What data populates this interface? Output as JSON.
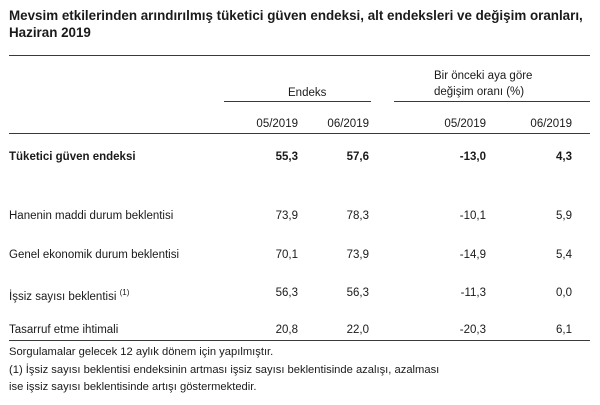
{
  "title": "Mevsim etkilerinden arındırılmış tüketici güven endeksi, alt endeksleri ve değişim oranları, Haziran 2019",
  "headers": {
    "group_index": "Endeks",
    "group_change_line1": "Bir önceki aya göre",
    "group_change_line2": "değişim oranı (%)",
    "periods": [
      "05/2019",
      "06/2019",
      "05/2019",
      "06/2019"
    ]
  },
  "rows": [
    {
      "label": "Tüketici güven endeksi",
      "sup": "",
      "values": [
        "55,3",
        "57,6",
        "-13,0",
        "4,3"
      ],
      "bold": true
    },
    {
      "label": "Hanenin maddi durum beklentisi",
      "sup": "",
      "values": [
        "73,9",
        "78,3",
        "-10,1",
        "5,9"
      ],
      "bold": false
    },
    {
      "label": "Genel ekonomik durum beklentisi",
      "sup": "",
      "values": [
        "70,1",
        "73,9",
        "-14,9",
        "5,4"
      ],
      "bold": false
    },
    {
      "label": "İşsiz sayısı beklentisi",
      "sup": "(1)",
      "values": [
        "56,3",
        "56,3",
        "-11,3",
        "0,0"
      ],
      "bold": false
    },
    {
      "label": "Tasarruf etme ihtimali",
      "sup": "",
      "values": [
        "20,8",
        "22,0",
        "-20,3",
        "6,1"
      ],
      "bold": false
    }
  ],
  "footnotes": [
    "Sorgulamalar gelecek 12 aylık dönem için yapılmıştır.",
    "(1) İşsiz sayısı beklentisi endeksinin artması işsiz sayısı beklentisinde azalışı, azalması",
    "ise işsiz sayısı beklentisinde artışı göstermektedir."
  ]
}
